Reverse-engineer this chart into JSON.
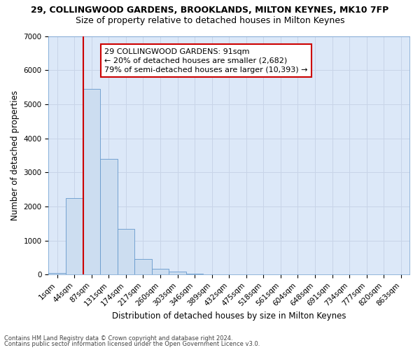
{
  "title1": "29, COLLINGWOOD GARDENS, BROOKLANDS, MILTON KEYNES, MK10 7FP",
  "title2": "Size of property relative to detached houses in Milton Keynes",
  "xlabel": "Distribution of detached houses by size in Milton Keynes",
  "ylabel": "Number of detached properties",
  "footer1": "Contains HM Land Registry data © Crown copyright and database right 2024.",
  "footer2": "Contains public sector information licensed under the Open Government Licence v3.0.",
  "annotation_title": "29 COLLINGWOOD GARDENS: 91sqm",
  "annotation_line1": "← 20% of detached houses are smaller (2,682)",
  "annotation_line2": "79% of semi-detached houses are larger (10,393) →",
  "bar_color": "#ccddf0",
  "bar_edge_color": "#6699cc",
  "vline_color": "#cc0000",
  "vline_x_index": 2,
  "categories": [
    "1sqm",
    "44sqm",
    "87sqm",
    "131sqm",
    "174sqm",
    "217sqm",
    "260sqm",
    "303sqm",
    "346sqm",
    "389sqm",
    "432sqm",
    "475sqm",
    "518sqm",
    "561sqm",
    "604sqm",
    "648sqm",
    "691sqm",
    "734sqm",
    "777sqm",
    "820sqm",
    "863sqm"
  ],
  "values": [
    50,
    2250,
    5450,
    3400,
    1350,
    450,
    170,
    80,
    20,
    0,
    0,
    0,
    0,
    0,
    0,
    0,
    0,
    0,
    0,
    0,
    0
  ],
  "ylim": [
    0,
    7000
  ],
  "yticks": [
    0,
    1000,
    2000,
    3000,
    4000,
    5000,
    6000,
    7000
  ],
  "grid_color": "#c8d4e8",
  "bg_color": "#dce8f8",
  "fig_bg_color": "#ffffff",
  "title1_fontsize": 9,
  "title2_fontsize": 9,
  "xlabel_fontsize": 8.5,
  "ylabel_fontsize": 8.5,
  "tick_fontsize": 7.5,
  "footer_fontsize": 6,
  "annotation_fontsize": 8
}
